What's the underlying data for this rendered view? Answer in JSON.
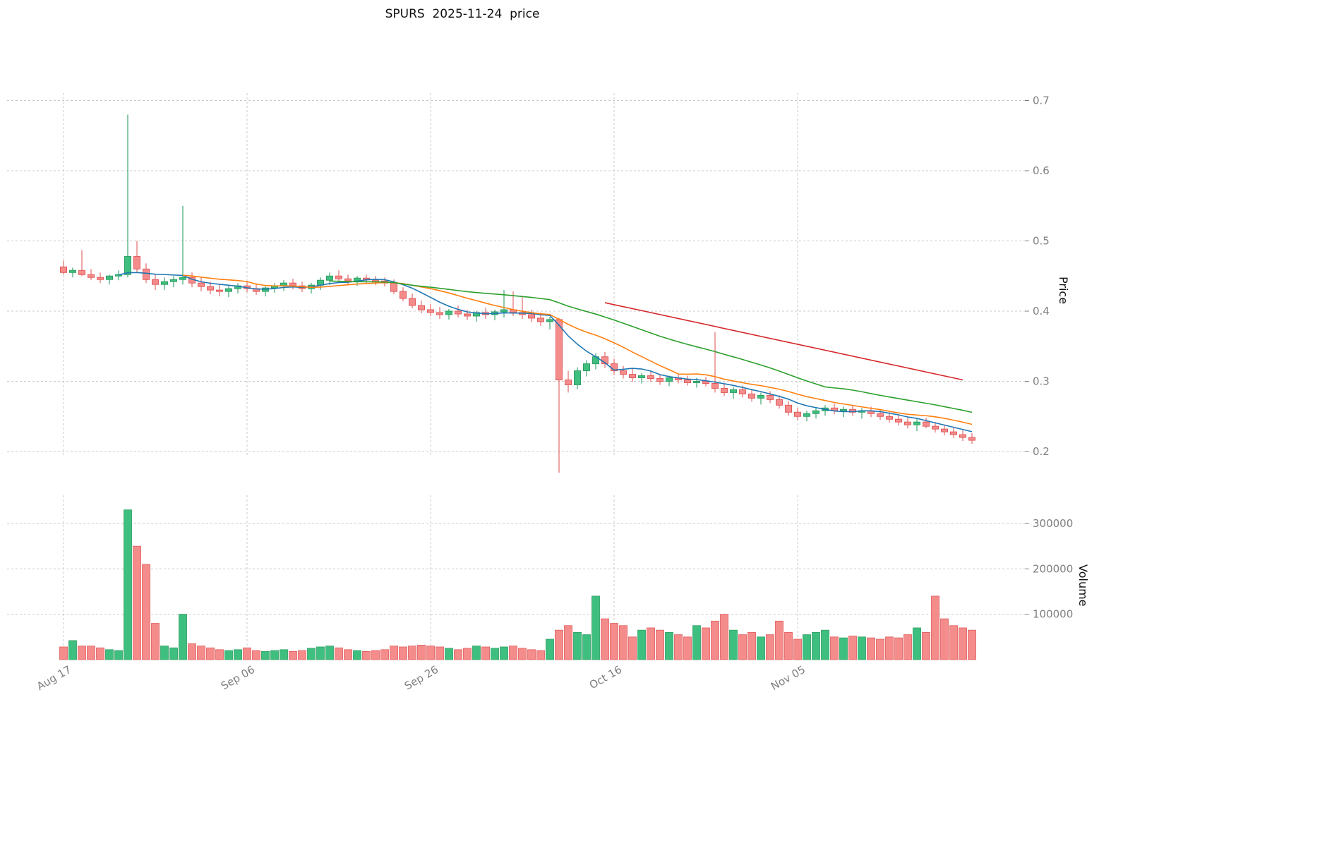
{
  "chart_data": {
    "type": "candlestick",
    "title": "SPURS  2025-11-24  price",
    "price_axis": {
      "label": "Price",
      "ticks": [
        0.2,
        0.3,
        0.4,
        0.5,
        0.6,
        0.7
      ],
      "range": [
        0.2,
        0.7
      ]
    },
    "volume_axis": {
      "label": "Volume",
      "ticks": [
        100000,
        200000,
        300000
      ],
      "range": [
        0,
        300000
      ]
    },
    "x_axis": {
      "ticks": [
        {
          "index": 0,
          "label": "Aug 17"
        },
        {
          "index": 20,
          "label": "Sep 06"
        },
        {
          "index": 40,
          "label": "Sep 26"
        },
        {
          "index": 60,
          "label": "Oct 16"
        },
        {
          "index": 80,
          "label": "Nov 05"
        }
      ]
    },
    "colors": {
      "up": "#3fbf7f",
      "up_edge": "#2e9e63",
      "down": "#f58c8c",
      "down_edge": "#e05c5c",
      "grid": "#c9c9c9",
      "tick_text": "#7f7f7f"
    },
    "moving_averages": [
      {
        "name": "SMA7",
        "period": 7,
        "color": "#1f77b4"
      },
      {
        "name": "SMA14",
        "period": 14,
        "color": "#ff7f0e"
      },
      {
        "name": "SMA30",
        "period": 30,
        "color": "#2ca02c"
      }
    ],
    "trendline": {
      "color": "#d62728",
      "start_index": 59,
      "start_value": 0.412,
      "end_index": 98,
      "end_value": 0.302
    },
    "candles": [
      [
        0.463,
        0.472,
        0.452,
        0.455,
        28000
      ],
      [
        0.455,
        0.462,
        0.448,
        0.458,
        42000
      ],
      [
        0.458,
        0.487,
        0.45,
        0.452,
        30000
      ],
      [
        0.452,
        0.46,
        0.444,
        0.448,
        30000
      ],
      [
        0.448,
        0.455,
        0.44,
        0.445,
        26000
      ],
      [
        0.445,
        0.452,
        0.438,
        0.45,
        22000
      ],
      [
        0.45,
        0.458,
        0.444,
        0.452,
        20000
      ],
      [
        0.452,
        0.68,
        0.448,
        0.478,
        330000
      ],
      [
        0.478,
        0.5,
        0.455,
        0.46,
        250000
      ],
      [
        0.46,
        0.468,
        0.44,
        0.445,
        210000
      ],
      [
        0.445,
        0.452,
        0.43,
        0.438,
        80000
      ],
      [
        0.438,
        0.448,
        0.43,
        0.442,
        30000
      ],
      [
        0.442,
        0.45,
        0.434,
        0.445,
        26000
      ],
      [
        0.445,
        0.55,
        0.438,
        0.448,
        100000
      ],
      [
        0.448,
        0.455,
        0.434,
        0.44,
        35000
      ],
      [
        0.44,
        0.448,
        0.428,
        0.435,
        30000
      ],
      [
        0.435,
        0.442,
        0.424,
        0.43,
        26000
      ],
      [
        0.43,
        0.438,
        0.421,
        0.428,
        22000
      ],
      [
        0.428,
        0.436,
        0.42,
        0.432,
        20000
      ],
      [
        0.432,
        0.44,
        0.425,
        0.436,
        22000
      ],
      [
        0.436,
        0.442,
        0.427,
        0.432,
        26000
      ],
      [
        0.432,
        0.438,
        0.423,
        0.428,
        20000
      ],
      [
        0.428,
        0.436,
        0.421,
        0.433,
        18000
      ],
      [
        0.433,
        0.44,
        0.426,
        0.436,
        20000
      ],
      [
        0.436,
        0.444,
        0.429,
        0.44,
        22000
      ],
      [
        0.44,
        0.446,
        0.431,
        0.436,
        18000
      ],
      [
        0.436,
        0.442,
        0.427,
        0.432,
        20000
      ],
      [
        0.432,
        0.44,
        0.425,
        0.437,
        25000
      ],
      [
        0.437,
        0.448,
        0.43,
        0.444,
        28000
      ],
      [
        0.444,
        0.455,
        0.437,
        0.45,
        30000
      ],
      [
        0.45,
        0.458,
        0.441,
        0.446,
        26000
      ],
      [
        0.446,
        0.452,
        0.437,
        0.443,
        22000
      ],
      [
        0.443,
        0.45,
        0.436,
        0.447,
        20000
      ],
      [
        0.447,
        0.452,
        0.439,
        0.445,
        18000
      ],
      [
        0.445,
        0.45,
        0.437,
        0.443,
        20000
      ],
      [
        0.443,
        0.448,
        0.435,
        0.44,
        22000
      ],
      [
        0.44,
        0.445,
        0.424,
        0.428,
        30000
      ],
      [
        0.428,
        0.434,
        0.414,
        0.418,
        28000
      ],
      [
        0.418,
        0.425,
        0.404,
        0.408,
        30000
      ],
      [
        0.408,
        0.415,
        0.397,
        0.402,
        32000
      ],
      [
        0.402,
        0.41,
        0.393,
        0.398,
        30000
      ],
      [
        0.398,
        0.406,
        0.389,
        0.395,
        28000
      ],
      [
        0.395,
        0.403,
        0.388,
        0.4,
        25000
      ],
      [
        0.4,
        0.408,
        0.391,
        0.396,
        22000
      ],
      [
        0.396,
        0.402,
        0.387,
        0.393,
        25000
      ],
      [
        0.393,
        0.4,
        0.385,
        0.398,
        30000
      ],
      [
        0.398,
        0.405,
        0.389,
        0.395,
        28000
      ],
      [
        0.395,
        0.402,
        0.387,
        0.399,
        25000
      ],
      [
        0.399,
        0.43,
        0.391,
        0.402,
        28000
      ],
      [
        0.402,
        0.428,
        0.393,
        0.398,
        30000
      ],
      [
        0.398,
        0.42,
        0.389,
        0.395,
        25000
      ],
      [
        0.395,
        0.402,
        0.384,
        0.39,
        22000
      ],
      [
        0.39,
        0.398,
        0.379,
        0.385,
        20000
      ],
      [
        0.385,
        0.392,
        0.374,
        0.388,
        45000
      ],
      [
        0.388,
        0.39,
        0.17,
        0.302,
        65000
      ],
      [
        0.302,
        0.315,
        0.284,
        0.295,
        75000
      ],
      [
        0.295,
        0.32,
        0.289,
        0.315,
        60000
      ],
      [
        0.315,
        0.33,
        0.307,
        0.325,
        55000
      ],
      [
        0.325,
        0.34,
        0.317,
        0.335,
        140000
      ],
      [
        0.335,
        0.342,
        0.319,
        0.325,
        90000
      ],
      [
        0.325,
        0.332,
        0.309,
        0.315,
        80000
      ],
      [
        0.315,
        0.322,
        0.304,
        0.31,
        75000
      ],
      [
        0.31,
        0.318,
        0.299,
        0.305,
        50000
      ],
      [
        0.305,
        0.312,
        0.297,
        0.308,
        65000
      ],
      [
        0.308,
        0.314,
        0.299,
        0.304,
        70000
      ],
      [
        0.304,
        0.31,
        0.295,
        0.3,
        65000
      ],
      [
        0.3,
        0.308,
        0.293,
        0.305,
        60000
      ],
      [
        0.305,
        0.31,
        0.297,
        0.302,
        55000
      ],
      [
        0.302,
        0.308,
        0.294,
        0.298,
        50000
      ],
      [
        0.298,
        0.305,
        0.291,
        0.3,
        75000
      ],
      [
        0.3,
        0.306,
        0.293,
        0.297,
        70000
      ],
      [
        0.297,
        0.37,
        0.284,
        0.29,
        85000
      ],
      [
        0.29,
        0.296,
        0.279,
        0.284,
        100000
      ],
      [
        0.284,
        0.292,
        0.275,
        0.288,
        65000
      ],
      [
        0.288,
        0.294,
        0.277,
        0.282,
        55000
      ],
      [
        0.282,
        0.288,
        0.271,
        0.276,
        60000
      ],
      [
        0.276,
        0.284,
        0.267,
        0.28,
        50000
      ],
      [
        0.28,
        0.286,
        0.269,
        0.274,
        55000
      ],
      [
        0.274,
        0.28,
        0.261,
        0.266,
        85000
      ],
      [
        0.266,
        0.272,
        0.251,
        0.256,
        60000
      ],
      [
        0.256,
        0.262,
        0.245,
        0.25,
        45000
      ],
      [
        0.25,
        0.258,
        0.243,
        0.254,
        55000
      ],
      [
        0.254,
        0.262,
        0.247,
        0.258,
        60000
      ],
      [
        0.258,
        0.266,
        0.251,
        0.262,
        65000
      ],
      [
        0.262,
        0.268,
        0.253,
        0.258,
        50000
      ],
      [
        0.258,
        0.264,
        0.249,
        0.26,
        48000
      ],
      [
        0.26,
        0.266,
        0.251,
        0.256,
        52000
      ],
      [
        0.256,
        0.262,
        0.247,
        0.258,
        50000
      ],
      [
        0.258,
        0.264,
        0.249,
        0.254,
        48000
      ],
      [
        0.254,
        0.26,
        0.245,
        0.25,
        45000
      ],
      [
        0.25,
        0.256,
        0.241,
        0.246,
        50000
      ],
      [
        0.246,
        0.252,
        0.237,
        0.242,
        48000
      ],
      [
        0.242,
        0.248,
        0.233,
        0.238,
        55000
      ],
      [
        0.238,
        0.246,
        0.229,
        0.242,
        70000
      ],
      [
        0.242,
        0.248,
        0.233,
        0.236,
        60000
      ],
      [
        0.236,
        0.242,
        0.227,
        0.232,
        140000
      ],
      [
        0.232,
        0.238,
        0.223,
        0.228,
        90000
      ],
      [
        0.228,
        0.234,
        0.219,
        0.224,
        75000
      ],
      [
        0.224,
        0.23,
        0.215,
        0.22,
        70000
      ],
      [
        0.22,
        0.226,
        0.211,
        0.216,
        65000
      ]
    ]
  }
}
